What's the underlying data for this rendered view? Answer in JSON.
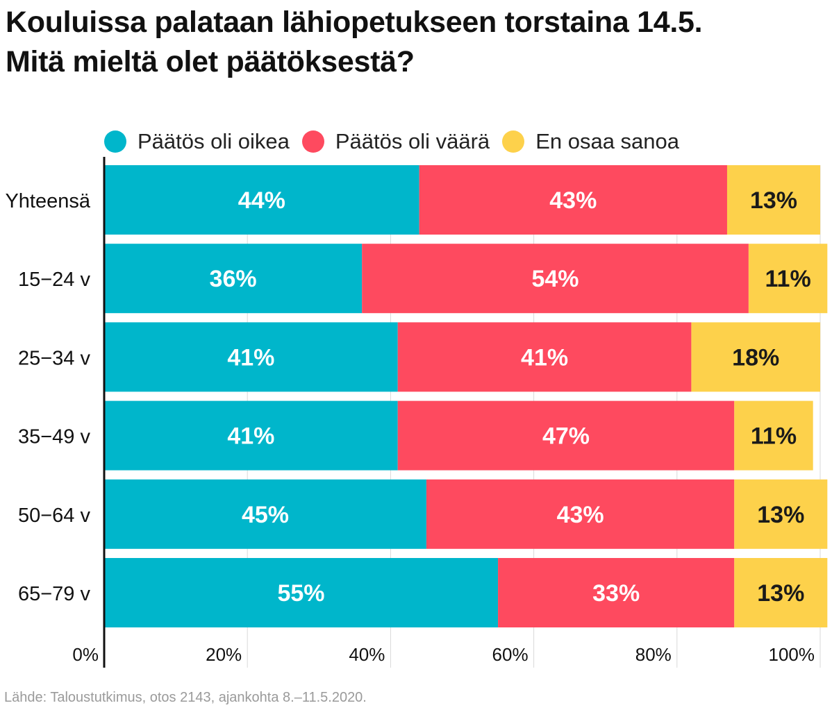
{
  "title_line1": "Kouluissa palataan lähiopetukseen torstaina 14.5.",
  "title_line2": "Mitä mieltä olet päätöksestä?",
  "source": "Lähde: Taloustutkimus, otos 2143, ajankohta 8.–11.5.2020.",
  "colors": {
    "oikea": "#00b6cb",
    "vaara": "#fe4a5f",
    "eos": "#fdd14b",
    "axis": "#111111",
    "grid": "#d9d9d9"
  },
  "chart_data": {
    "type": "bar",
    "orientation": "horizontal",
    "stacked": true,
    "categories": [
      "Yhteensä",
      "15−24 v",
      "25−34 v",
      "35−49 v",
      "50−64 v",
      "65−79 v"
    ],
    "series": [
      {
        "name": "Päätös oli oikea",
        "color": "#00b6cb",
        "values": [
          44,
          36,
          41,
          41,
          45,
          55
        ],
        "labels": [
          "44%",
          "36%",
          "41%",
          "41%",
          "45%",
          "55%"
        ]
      },
      {
        "name": "Päätös oli väärä",
        "color": "#fe4a5f",
        "values": [
          43,
          54,
          41,
          47,
          43,
          33
        ],
        "labels": [
          "43%",
          "54%",
          "41%",
          "47%",
          "43%",
          "33%"
        ]
      },
      {
        "name": "En osaa sanoa",
        "color": "#fdd14b",
        "values": [
          13,
          11,
          18,
          11,
          13,
          13
        ],
        "labels": [
          "13%",
          "11%",
          "18%",
          "11%",
          "13%",
          "13%"
        ]
      }
    ],
    "xlim": [
      0,
      100
    ],
    "ticks": [
      0,
      20,
      40,
      60,
      80,
      100
    ],
    "tick_labels": [
      "0%",
      "20%",
      "40%",
      "60%",
      "80%",
      "100%"
    ],
    "legend_position": "top",
    "grid": true
  }
}
